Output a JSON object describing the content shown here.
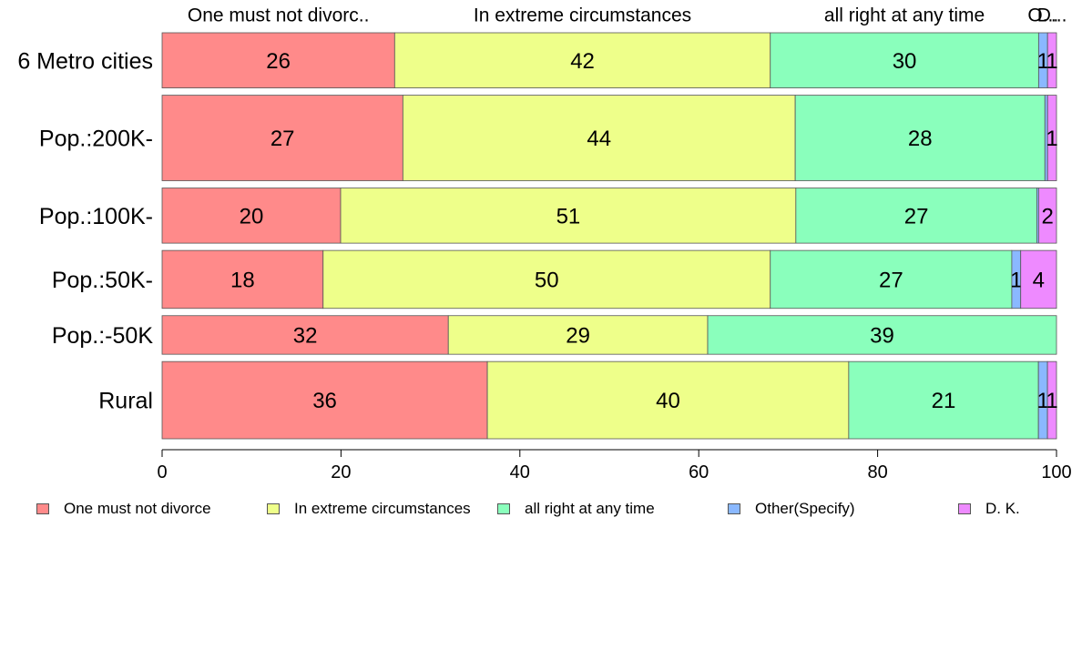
{
  "chart_data": {
    "type": "bar",
    "orientation": "horizontal",
    "stacked": true,
    "categories": [
      "6 Metro cities",
      "Pop.:200K-",
      "Pop.:100K-",
      "Pop.:50K-",
      "Pop.:-50K",
      "Rural"
    ],
    "series": [
      {
        "name": "One must not divorce",
        "color": "#FF8A8A",
        "values": [
          26,
          27,
          20,
          18,
          32,
          36
        ]
      },
      {
        "name": "In extreme circumstances",
        "color": "#EEFF8A",
        "values": [
          42,
          44,
          51,
          50,
          29,
          40
        ]
      },
      {
        "name": "all right at any time",
        "color": "#8AFFBC",
        "values": [
          30,
          28,
          27,
          27,
          39,
          21
        ]
      },
      {
        "name": "Other(Specify)",
        "color": "#8AB8FF",
        "values": [
          1,
          0.3,
          0.2,
          1,
          0,
          1
        ]
      },
      {
        "name": "D. K.",
        "color": "#EE8AFF",
        "values": [
          1,
          1,
          2,
          4,
          0,
          1
        ]
      }
    ],
    "bar_labels": [
      [
        "26",
        "42",
        "30",
        "1",
        "1"
      ],
      [
        "27",
        "44",
        "28",
        "",
        "1"
      ],
      [
        "20",
        "51",
        "27",
        "",
        "2"
      ],
      [
        "18",
        "50",
        "27",
        "1",
        "4"
      ],
      [
        "32",
        "29",
        "39",
        "",
        ""
      ],
      [
        "36",
        "40",
        "21",
        "1",
        "1"
      ]
    ],
    "bar_weights": [
      1.0,
      1.55,
      1.0,
      1.05,
      0.7,
      1.4
    ],
    "top_labels": [
      "One must not divorc..",
      "In extreme circumstances",
      "all right at any time",
      "O...",
      "D..."
    ],
    "xlim": [
      0,
      100
    ],
    "xticks": [
      "0",
      "20",
      "40",
      "60",
      "80",
      "100"
    ],
    "legend_position": "bottom",
    "grid": false
  }
}
